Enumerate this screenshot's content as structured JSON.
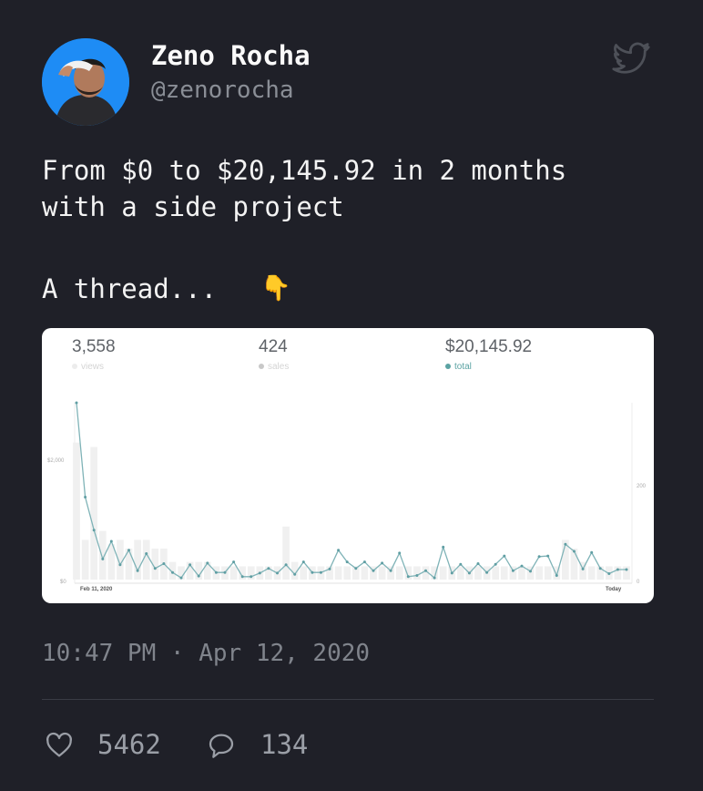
{
  "author": {
    "name": "Zeno Rocha",
    "handle": "@zenorocha"
  },
  "tweet": {
    "line1": "From $0 to $20,145.92 in 2 months",
    "line2": "with a side project",
    "line3": "A thread...",
    "emoji": "👇"
  },
  "stats": [
    {
      "value": "3,558",
      "label": "views",
      "color": "#dddddd"
    },
    {
      "value": "424",
      "label": "sales",
      "color": "#c8c8c8"
    },
    {
      "value": "$20,145.92",
      "label": "total",
      "color": "#5ba3a3"
    }
  ],
  "chart_data": {
    "type": "line",
    "x_start_label": "Feb 11, 2020",
    "x_end_label": "Today",
    "y_left_ticks": [
      "$2,000",
      "$0"
    ],
    "y_right_ticks": [
      "200",
      "0"
    ],
    "series": [
      {
        "name": "total",
        "color": "#7fb3b7",
        "values": [
          3000,
          1400,
          840,
          350,
          650,
          250,
          500,
          150,
          440,
          190,
          270,
          120,
          30,
          250,
          60,
          280,
          120,
          120,
          300,
          50,
          50,
          110,
          190,
          110,
          250,
          90,
          300,
          120,
          120,
          180,
          500,
          300,
          190,
          300,
          150,
          280,
          150,
          450,
          50,
          70,
          150,
          30,
          550,
          110,
          260,
          110,
          270,
          120,
          260,
          400,
          150,
          230,
          140,
          390,
          400,
          70,
          600,
          480,
          180,
          460,
          190,
          100,
          170,
          170
        ]
      },
      {
        "name": "sales",
        "color": "#f0f0f0",
        "values": [
          155,
          45,
          150,
          55,
          40,
          45,
          35,
          45,
          45,
          35,
          35,
          20,
          15,
          20,
          20,
          20,
          15,
          15,
          15,
          15,
          15,
          15,
          15,
          15,
          60,
          20,
          15,
          15,
          15,
          15,
          15,
          15,
          15,
          15,
          15,
          15,
          15,
          15,
          15,
          15,
          15,
          15,
          15,
          15,
          15,
          15,
          15,
          15,
          15,
          15,
          15,
          15,
          15,
          15,
          15,
          15,
          45,
          35,
          20,
          15,
          15,
          15,
          15,
          15
        ]
      }
    ],
    "y_left_range": [
      0,
      3000
    ],
    "y_right_range": [
      0,
      200
    ]
  },
  "timestamp": {
    "time": "10:47 PM",
    "separator": "·",
    "date": "Apr 12, 2020"
  },
  "actions": {
    "likes": "5462",
    "replies": "134"
  },
  "colors": {
    "background": "#1f2028",
    "accent": "#1e8cf5",
    "muted": "#80848c"
  }
}
